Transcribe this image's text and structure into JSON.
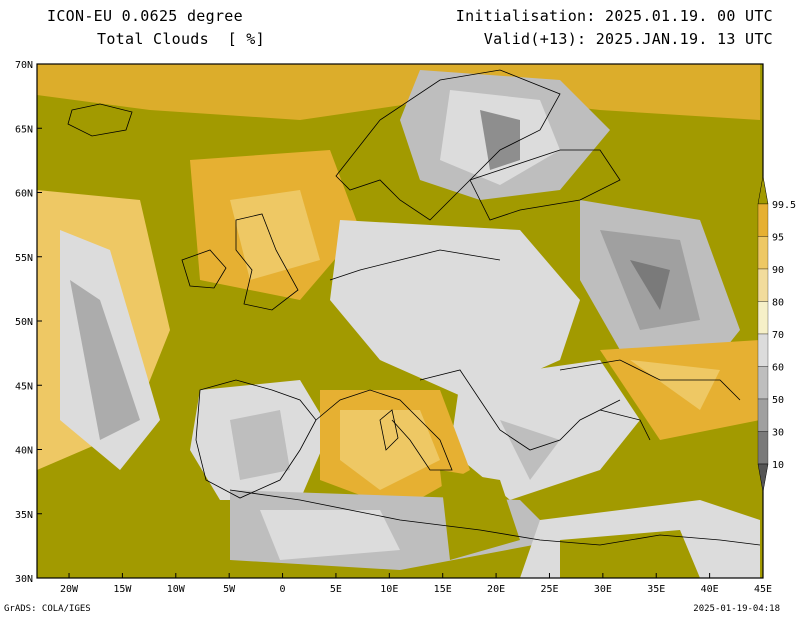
{
  "header": {
    "model": "ICON-EU 0.0625 degree",
    "variable": "Total Clouds  [ %]",
    "init": "Initialisation: 2025.01.19. 00 UTC",
    "valid": "Valid(+13): 2025.JAN.19. 13 UTC"
  },
  "footer": {
    "credit": "GrADS: COLA/IGES",
    "stamp": "2025-01-19-04:18"
  },
  "map": {
    "lon_range": [
      -23,
      45
    ],
    "lat_range": [
      30,
      70
    ],
    "lon_ticks": [
      {
        "v": -20,
        "label": "20W"
      },
      {
        "v": -15,
        "label": "15W"
      },
      {
        "v": -10,
        "label": "10W"
      },
      {
        "v": -5,
        "label": "5W"
      },
      {
        "v": 0,
        "label": "0"
      },
      {
        "v": 5,
        "label": "5E"
      },
      {
        "v": 10,
        "label": "10E"
      },
      {
        "v": 15,
        "label": "15E"
      },
      {
        "v": 20,
        "label": "20E"
      },
      {
        "v": 25,
        "label": "25E"
      },
      {
        "v": 30,
        "label": "30E"
      },
      {
        "v": 35,
        "label": "35E"
      },
      {
        "v": 40,
        "label": "40E"
      },
      {
        "v": 45,
        "label": "45E"
      }
    ],
    "lat_ticks": [
      {
        "v": 70,
        "label": "70N"
      },
      {
        "v": 65,
        "label": "65N"
      },
      {
        "v": 60,
        "label": "60N"
      },
      {
        "v": 55,
        "label": "55N"
      },
      {
        "v": 50,
        "label": "50N"
      },
      {
        "v": 45,
        "label": "45N"
      },
      {
        "v": 40,
        "label": "40N"
      },
      {
        "v": 35,
        "label": "35N"
      },
      {
        "v": 30,
        "label": "30N"
      }
    ]
  },
  "colorbar": {
    "levels": [
      "99.5",
      "95",
      "90",
      "80",
      "70",
      "60",
      "50",
      "30",
      "10"
    ],
    "colors": [
      "#a29a00",
      "#e6b032",
      "#eec864",
      "#f2dc9c",
      "#f6f0c8",
      "#dcdcdc",
      "#bebebe",
      "#a0a0a0",
      "#7a7a7a",
      "#555555"
    ]
  }
}
